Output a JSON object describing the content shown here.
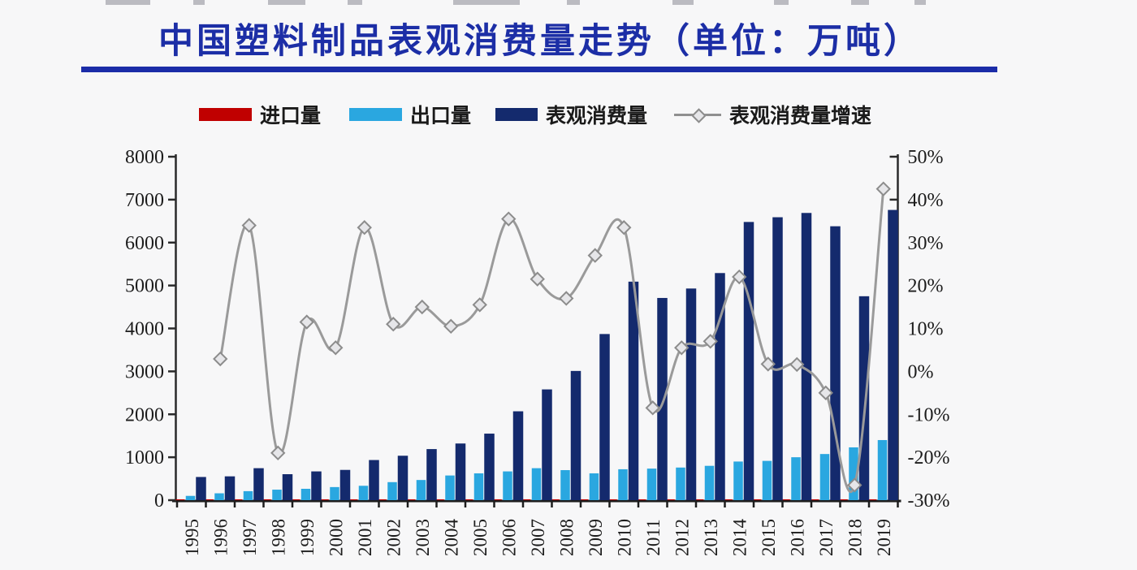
{
  "title": "中国塑料制品表观消费量走势（单位：万吨）",
  "legend": [
    {
      "label": "进口量",
      "type": "bar",
      "color": "#c00000"
    },
    {
      "label": "出口量",
      "type": "bar",
      "color": "#2aa7e0"
    },
    {
      "label": "表观消费量",
      "type": "bar",
      "color": "#142a6d"
    },
    {
      "label": "表观消费量增速",
      "type": "line",
      "color": "#9a9a9a"
    }
  ],
  "chart_data": {
    "type": "bar+line",
    "title": "中国塑料制品表观消费量走势（单位：万吨）",
    "x": [
      "1995",
      "1996",
      "1997",
      "1998",
      "1999",
      "2000",
      "2001",
      "2002",
      "2003",
      "2004",
      "2005",
      "2006",
      "2007",
      "2008",
      "2009",
      "2010",
      "2011",
      "2012",
      "2013",
      "2014",
      "2015",
      "2016",
      "2017",
      "2018",
      "2019"
    ],
    "series": [
      {
        "name": "进口量",
        "type": "bar",
        "axis": "left",
        "color": "#c00000",
        "values": [
          20,
          20,
          20,
          20,
          20,
          20,
          20,
          20,
          20,
          20,
          20,
          20,
          20,
          20,
          20,
          20,
          20,
          20,
          20,
          20,
          20,
          20,
          20,
          20,
          20
        ]
      },
      {
        "name": "出口量",
        "type": "bar",
        "axis": "left",
        "color": "#2aa7e0",
        "values": [
          100,
          160,
          210,
          245,
          265,
          305,
          335,
          420,
          470,
          575,
          625,
          670,
          745,
          700,
          625,
          720,
          735,
          760,
          800,
          900,
          915,
          1000,
          1075,
          1230,
          1400
        ]
      },
      {
        "name": "表观消费量",
        "type": "bar",
        "axis": "left",
        "color": "#142a6d",
        "values": [
          540,
          555,
          745,
          605,
          670,
          705,
          935,
          1035,
          1190,
          1320,
          1550,
          2070,
          2580,
          3010,
          3870,
          5090,
          4710,
          4930,
          5290,
          6480,
          6590,
          6690,
          6380,
          4750,
          6760
        ]
      },
      {
        "name": "表观消费量增速",
        "type": "line",
        "axis": "right",
        "color": "#9a9a9a",
        "values": [
          null,
          2.9,
          34,
          -19,
          11.5,
          5.5,
          33.5,
          11,
          15,
          10.5,
          15.5,
          35.5,
          21.5,
          17,
          27,
          33.5,
          -8.5,
          5.5,
          7,
          22,
          1.7,
          1.6,
          -5,
          -26.5,
          42.5
        ]
      }
    ],
    "left_axis": {
      "min": 0,
      "max": 8000,
      "step": 1000,
      "labels": [
        "8000",
        "7000",
        "6000",
        "5000",
        "4000",
        "3000",
        "2000",
        "1000",
        "0"
      ]
    },
    "right_axis": {
      "min": -30,
      "max": 50,
      "step": 10,
      "labels": [
        "50%",
        "40%",
        "30%",
        "20%",
        "10%",
        "0%",
        "-10%",
        "-20%",
        "-30%"
      ]
    },
    "grid": false,
    "legend_position": "top"
  }
}
